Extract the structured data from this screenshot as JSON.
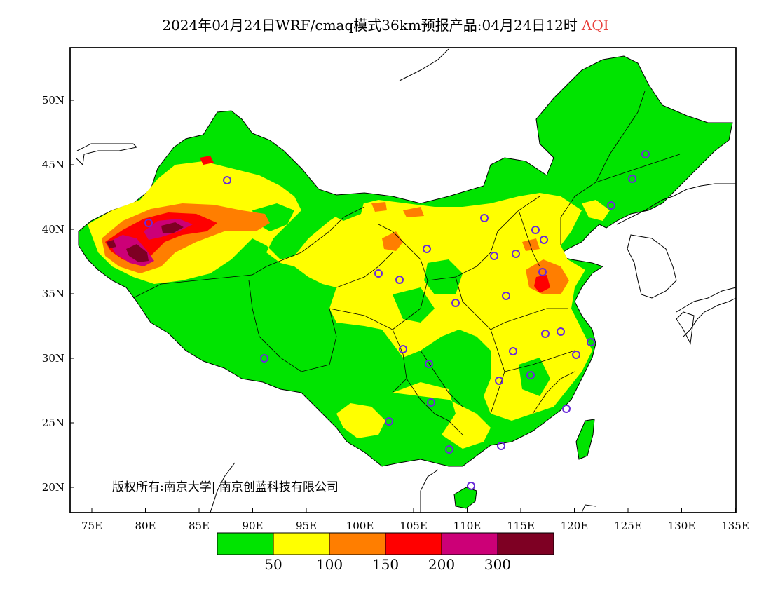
{
  "title": {
    "main": "2024年04月24日WRF/cmaq模式36km预报产品:04月24日12时",
    "variable": "AQI"
  },
  "copyright": "版权所有:南京大学| 南京创蓝科技有限公司",
  "axes": {
    "lat_labels": [
      "50N",
      "45N",
      "40N",
      "35N",
      "30N",
      "25N",
      "20N"
    ],
    "lon_labels": [
      "75E",
      "80E",
      "85E",
      "90E",
      "95E",
      "100E",
      "105E",
      "110E",
      "115E",
      "120E",
      "125E",
      "130E",
      "135E"
    ]
  },
  "legend": {
    "colors": [
      "#00e400",
      "#ffff00",
      "#ff7e00",
      "#ff0000",
      "#cc0077",
      "#7e0023"
    ],
    "thresholds": [
      "50",
      "100",
      "150",
      "200",
      "300"
    ]
  },
  "station_marker_color": "#6a2bd9"
}
